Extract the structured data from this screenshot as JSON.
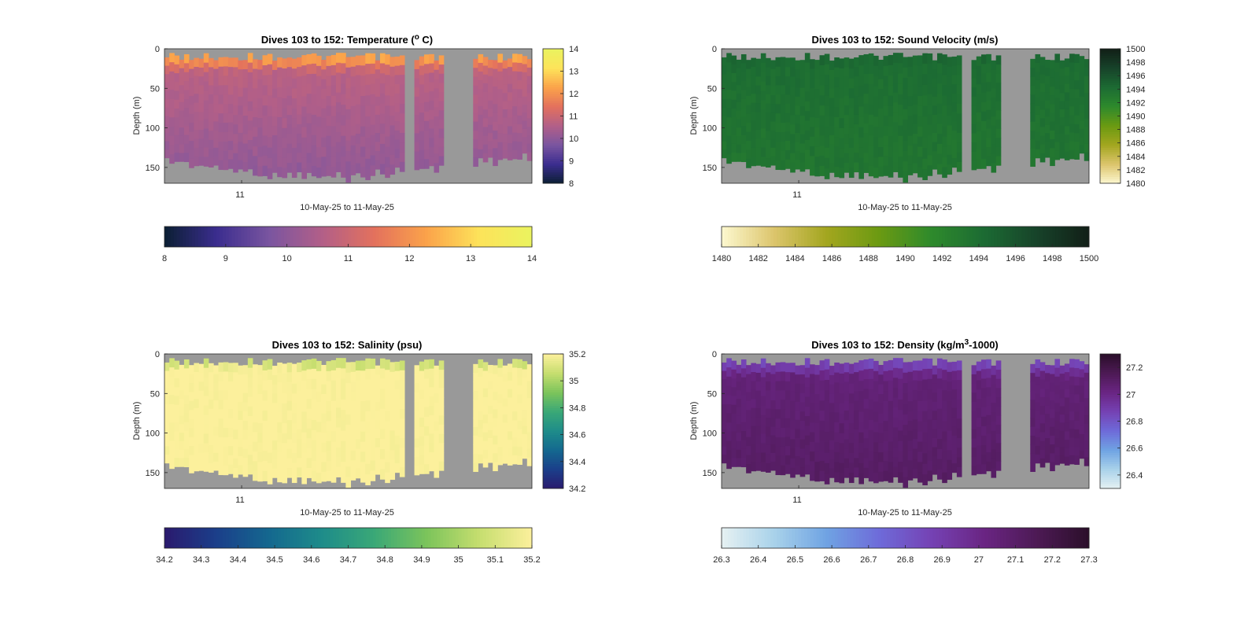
{
  "figure": {
    "background": "#ffffff",
    "no_data_color": "#999999",
    "time_label": "10-May-25 to 11-May-25",
    "time_tick": "11",
    "ylabel": "Depth (m)"
  },
  "chart_data": [
    {
      "type": "heatmap",
      "title_main": "Dives 103 to 152: Temperature (",
      "title_sup": "o",
      "title_end": " C)",
      "xlabel": "10-May-25 to 11-May-25",
      "ylabel": "Depth (m)",
      "xticks": [
        "11"
      ],
      "ylim": [
        0,
        170
      ],
      "yticks": [
        0,
        50,
        100,
        150
      ],
      "clim": [
        8,
        14
      ],
      "colorbar_ticks": [
        8,
        9,
        10,
        11,
        12,
        13,
        14
      ],
      "colormap": [
        "#0b1f33",
        "#3b2d8f",
        "#7a55a0",
        "#b25f88",
        "#e3715d",
        "#fba34a",
        "#fde35a",
        "#eaf35f"
      ],
      "surface_value": 12.3,
      "mixed_value": 10.7,
      "deep_value": 10.0,
      "surface_depth": 12,
      "thermocline_depth": 30
    },
    {
      "type": "heatmap",
      "title_main": "Dives 103 to 152: Sound Velocity (m/s)",
      "title_sup": "",
      "title_end": "",
      "xlabel": "10-May-25 to 11-May-25",
      "ylabel": "Depth (m)",
      "xticks": [
        "11"
      ],
      "ylim": [
        0,
        170
      ],
      "yticks": [
        0,
        50,
        100,
        150
      ],
      "clim": [
        1480,
        1500
      ],
      "colorbar_ticks": [
        1480,
        1482,
        1484,
        1486,
        1488,
        1490,
        1492,
        1494,
        1496,
        1498,
        1500
      ],
      "colormap": [
        "#fdf8d0",
        "#dcc56c",
        "#a3a61f",
        "#6b9a12",
        "#2e8a2c",
        "#1c6b33",
        "#17432a",
        "#121f17"
      ],
      "surface_value": 1494.5,
      "mixed_value": 1494.0,
      "deep_value": 1493.3,
      "surface_depth": 12,
      "thermocline_depth": 30
    },
    {
      "type": "heatmap",
      "title_main": "Dives 103 to 152: Salinity (psu)",
      "title_sup": "",
      "title_end": "",
      "xlabel": "10-May-25 to 11-May-25",
      "ylabel": "Depth (m)",
      "xticks": [
        "11"
      ],
      "ylim": [
        0,
        170
      ],
      "yticks": [
        0,
        50,
        100,
        150
      ],
      "clim": [
        34.2,
        35.2
      ],
      "colorbar_ticks": [
        34.2,
        34.3,
        34.4,
        34.5,
        34.6,
        34.7,
        34.8,
        34.9,
        35,
        35.1,
        35.2
      ],
      "colorbar_ticks_vertical": [
        34.2,
        34.4,
        34.6,
        34.8,
        35,
        35.2
      ],
      "colormap": [
        "#2a1a6e",
        "#1b3f8a",
        "#14688f",
        "#1e8c8a",
        "#3aa877",
        "#7cc45b",
        "#c6de6f",
        "#fcf09c"
      ],
      "surface_value": 35.08,
      "mixed_value": 35.2,
      "deep_value": 35.2,
      "surface_depth": 15,
      "thermocline_depth": 18
    },
    {
      "type": "heatmap",
      "title_main": "Dives 103 to 152: Density (kg/m",
      "title_sup": "3",
      "title_end": "-1000)",
      "xlabel": "10-May-25 to 11-May-25",
      "ylabel": "Depth (m)",
      "xticks": [
        "11"
      ],
      "ylim": [
        0,
        170
      ],
      "yticks": [
        0,
        50,
        100,
        150
      ],
      "clim": [
        26.3,
        27.3
      ],
      "colorbar_ticks": [
        26.3,
        26.4,
        26.5,
        26.6,
        26.7,
        26.8,
        26.9,
        27,
        27.1,
        27.2,
        27.3
      ],
      "colorbar_ticks_vertical": [
        26.4,
        26.6,
        26.8,
        27,
        27.2
      ],
      "colormap": [
        "#e6f1f2",
        "#a9d2ea",
        "#6fa3e3",
        "#6e6bd9",
        "#7542b4",
        "#6a2583",
        "#4d1a55",
        "#2b0f2a"
      ],
      "surface_value": 26.85,
      "mixed_value": 27.05,
      "deep_value": 27.12,
      "surface_depth": 12,
      "thermocline_depth": 30
    }
  ]
}
